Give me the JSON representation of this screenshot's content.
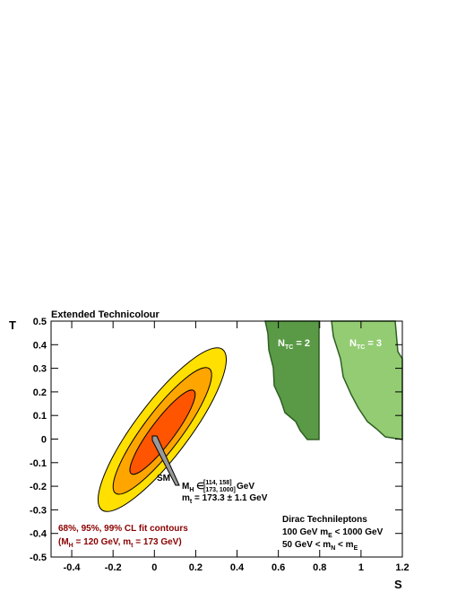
{
  "chart_data": {
    "type": "contour",
    "title": "Extended Technicolour",
    "xlabel": "S",
    "ylabel": "T",
    "xlim": [
      -0.5,
      1.2
    ],
    "ylim": [
      -0.5,
      0.5
    ],
    "xticks": [
      -0.4,
      -0.2,
      0,
      0.2,
      0.4,
      0.6,
      0.8,
      1,
      1.2
    ],
    "yticks": [
      -0.5,
      -0.4,
      -0.3,
      -0.2,
      -0.1,
      0,
      0.1,
      0.2,
      0.3,
      0.4,
      0.5
    ],
    "contour_colors": [
      "#ffe000",
      "#ffa500",
      "#ff5500"
    ],
    "region_colors": [
      "#5a9a46",
      "#94cc73"
    ],
    "sm_label": "SM",
    "mh_range": [
      "M",
      "H",
      " ∈ ",
      "[114, 158]",
      "[173, 1000]",
      " GeV"
    ],
    "mt_range": [
      "m",
      "t",
      " = 173.3 ± 1.1 GeV"
    ],
    "ntc2": [
      "N",
      "TC",
      " = 2"
    ],
    "ntc3": [
      "N",
      "TC",
      " = 3"
    ],
    "contour_note": [
      "68%, 95%, 99% CL fit contours",
      "(M",
      "H",
      " = 120 GeV, m",
      "t",
      " = 173 GeV)"
    ],
    "leptons": [
      "Dirac Technileptons",
      "100 GeV m",
      "E",
      " < 1000 GeV",
      "50 GeV < m",
      "N",
      " < m",
      "E"
    ]
  }
}
